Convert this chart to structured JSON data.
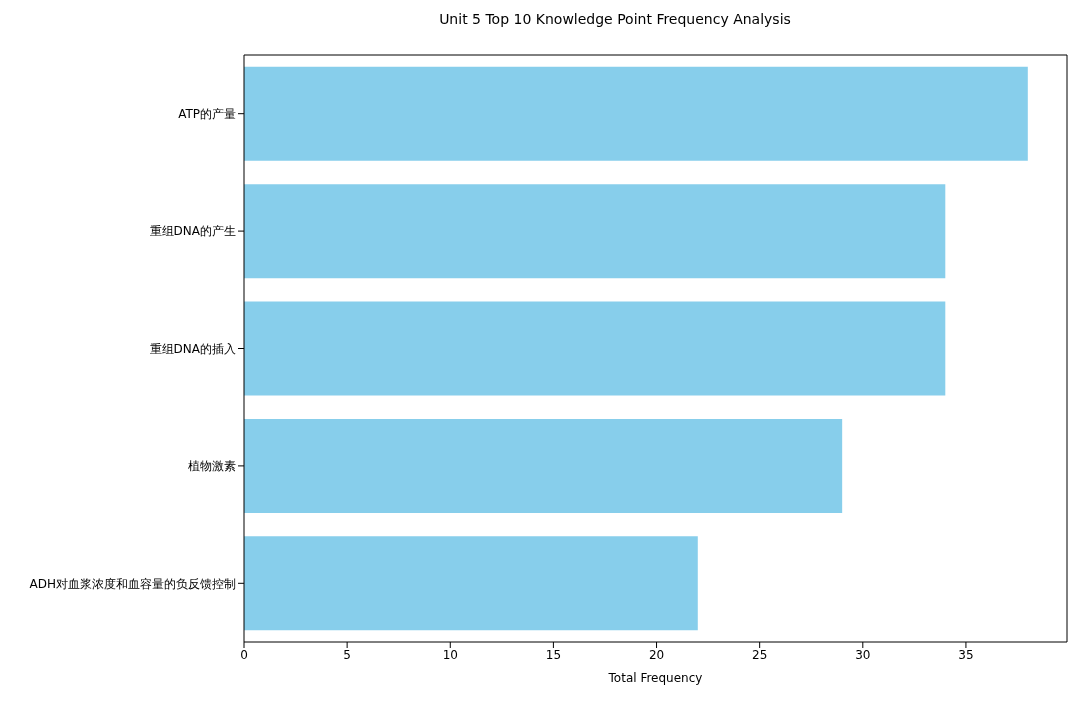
{
  "chart_data": {
    "type": "bar",
    "orientation": "horizontal",
    "title": "Unit 5 Top 10 Knowledge Point Frequency Analysis",
    "xlabel": "Total Frequency",
    "categories": [
      "ATP的产量",
      "重组DNA的产生",
      "重组DNA的插入",
      "植物激素",
      "ADH对血浆浓度和血容量的负反馈控制"
    ],
    "values": [
      38,
      34,
      34,
      29,
      22
    ],
    "color": "#87ceeb",
    "xlim": [
      0,
      39.9
    ],
    "xticks": [
      0,
      5,
      10,
      15,
      20,
      25,
      30,
      35
    ],
    "grid": false,
    "legend": false
  }
}
